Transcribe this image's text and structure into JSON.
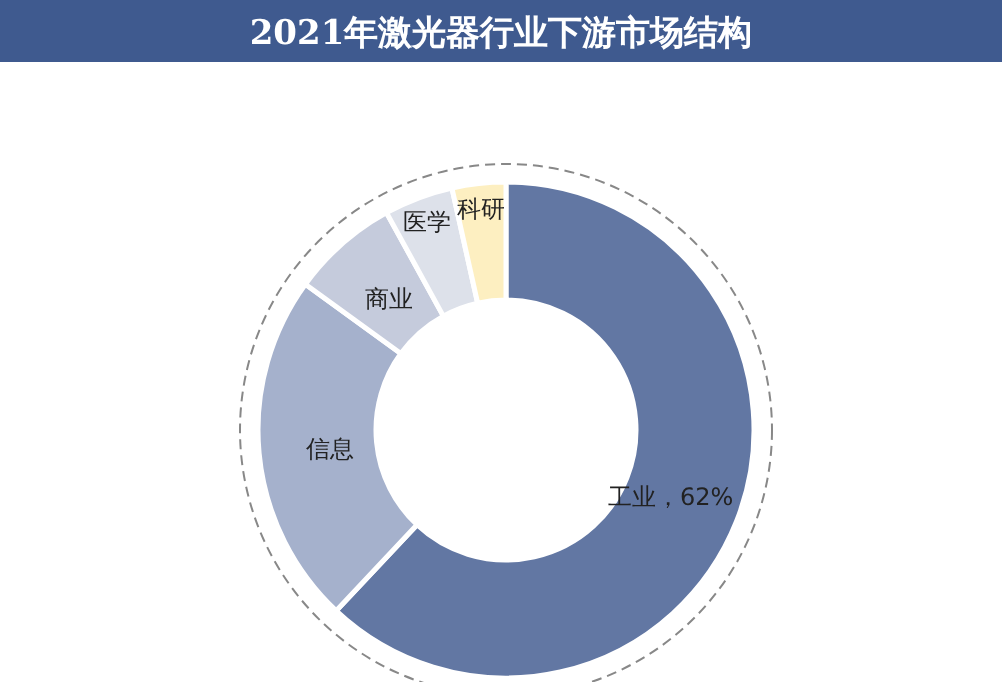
{
  "chart_data": {
    "type": "donut",
    "title": "2021年激光器行业下游市场结构",
    "categories": [
      "工业",
      "信息",
      "商业",
      "医学",
      "科研"
    ],
    "values": [
      62,
      23,
      7,
      4.5,
      3.5
    ],
    "colors": [
      "#6277a3",
      "#a5b1cc",
      "#c5cbdc",
      "#dde1ea",
      "#fdefc1"
    ],
    "value_labels": [
      "62%",
      null,
      null,
      null,
      null
    ]
  }
}
